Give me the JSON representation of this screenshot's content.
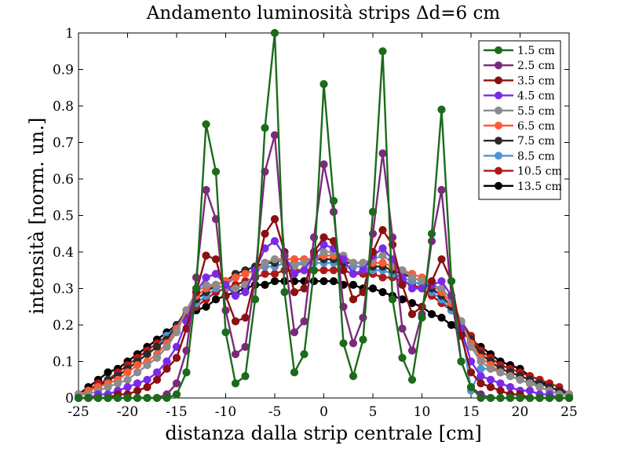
{
  "chart_data": {
    "type": "line",
    "title": "Andamento luminosità strips Δd=6 cm",
    "xlabel": "distanza dalla strip centrale [cm]",
    "ylabel": "intensità [norm. un.]",
    "xlim": [
      -25,
      25
    ],
    "ylim": [
      0,
      1
    ],
    "xticks": [
      -25,
      -20,
      -15,
      -10,
      -5,
      0,
      5,
      10,
      15,
      20,
      25
    ],
    "yticks": [
      0,
      0.1,
      0.2,
      0.3,
      0.4,
      0.5,
      0.6,
      0.7,
      0.8,
      0.9,
      1
    ],
    "xtick_labels": [
      "-25",
      "-20",
      "-15",
      "-10",
      "-5",
      "0",
      "5",
      "10",
      "15",
      "20",
      "25"
    ],
    "ytick_labels": [
      "0",
      "0.1",
      "0.2",
      "0.3",
      "0.4",
      "0.5",
      "0.6",
      "0.7",
      "0.8",
      "0.9",
      "1"
    ],
    "legend_position": "top-right",
    "grid": false,
    "series": [
      {
        "name": "1.5 cm",
        "color": "#1b6b1b",
        "x": [
          -25,
          -24,
          -23,
          -22,
          -21,
          -20,
          -19,
          -18,
          -17,
          -16,
          -15,
          -14,
          -13,
          -12,
          -11,
          -10,
          -9,
          -8,
          -7,
          -6,
          -5,
          -4,
          -3,
          -2,
          -1,
          0,
          1,
          2,
          3,
          4,
          5,
          6,
          7,
          8,
          9,
          10,
          11,
          12,
          13,
          14,
          15,
          16,
          17,
          18,
          19,
          20,
          21,
          22,
          23,
          24,
          25
        ],
        "y": [
          0,
          0,
          0,
          0,
          0,
          0,
          0,
          0,
          0,
          0,
          0.01,
          0.07,
          0.3,
          0.75,
          0.62,
          0.18,
          0.04,
          0.06,
          0.27,
          0.74,
          1.0,
          0.29,
          0.07,
          0.12,
          0.35,
          0.86,
          0.54,
          0.15,
          0.06,
          0.16,
          0.51,
          0.95,
          0.27,
          0.11,
          0.05,
          0.22,
          0.45,
          0.79,
          0.32,
          0.1,
          0.03,
          0,
          0,
          0,
          0,
          0,
          0,
          0,
          0,
          0,
          0
        ]
      },
      {
        "name": "2.5 cm",
        "color": "#7b2a7b",
        "x": [
          -25,
          -24,
          -23,
          -22,
          -21,
          -20,
          -19,
          -18,
          -17,
          -16,
          -15,
          -14,
          -13,
          -12,
          -11,
          -10,
          -9,
          -8,
          -7,
          -6,
          -5,
          -4,
          -3,
          -2,
          -1,
          0,
          1,
          2,
          3,
          4,
          5,
          6,
          7,
          8,
          9,
          10,
          11,
          12,
          13,
          14,
          15,
          16,
          17,
          18,
          19,
          20,
          21,
          22,
          23,
          24,
          25
        ],
        "y": [
          0,
          0,
          0,
          0,
          0,
          0,
          0,
          0,
          0,
          0.01,
          0.04,
          0.13,
          0.33,
          0.57,
          0.49,
          0.24,
          0.12,
          0.14,
          0.33,
          0.62,
          0.72,
          0.39,
          0.18,
          0.21,
          0.44,
          0.64,
          0.51,
          0.25,
          0.15,
          0.22,
          0.45,
          0.67,
          0.44,
          0.19,
          0.13,
          0.23,
          0.43,
          0.57,
          0.28,
          0.1,
          0.03,
          0.01,
          0,
          0,
          0,
          0,
          0,
          0,
          0,
          0,
          0
        ]
      },
      {
        "name": "3.5 cm",
        "color": "#8b1010",
        "x": [
          -25,
          -24,
          -23,
          -22,
          -21,
          -20,
          -19,
          -18,
          -17,
          -16,
          -15,
          -14,
          -13,
          -12,
          -11,
          -10,
          -9,
          -8,
          -7,
          -6,
          -5,
          -4,
          -3,
          -2,
          -1,
          0,
          1,
          2,
          3,
          4,
          5,
          6,
          7,
          8,
          9,
          10,
          11,
          12,
          13,
          14,
          15,
          16,
          17,
          18,
          19,
          20,
          21,
          22,
          23,
          24,
          25
        ],
        "y": [
          0,
          0,
          0,
          0,
          0.01,
          0.01,
          0.02,
          0.03,
          0.05,
          0.08,
          0.11,
          0.19,
          0.29,
          0.39,
          0.38,
          0.28,
          0.21,
          0.22,
          0.33,
          0.45,
          0.49,
          0.4,
          0.29,
          0.3,
          0.4,
          0.44,
          0.43,
          0.35,
          0.27,
          0.29,
          0.4,
          0.46,
          0.42,
          0.31,
          0.23,
          0.25,
          0.32,
          0.38,
          0.32,
          0.17,
          0.07,
          0.04,
          0.03,
          0.02,
          0.01,
          0.01,
          0,
          0,
          0,
          0,
          0
        ]
      },
      {
        "name": "4.5 cm",
        "color": "#7a2ae8",
        "x": [
          -25,
          -24,
          -23,
          -22,
          -21,
          -20,
          -19,
          -18,
          -17,
          -16,
          -15,
          -14,
          -13,
          -12,
          -11,
          -10,
          -9,
          -8,
          -7,
          -6,
          -5,
          -4,
          -3,
          -2,
          -1,
          0,
          1,
          2,
          3,
          4,
          5,
          6,
          7,
          8,
          9,
          10,
          11,
          12,
          13,
          14,
          15,
          16,
          17,
          18,
          19,
          20,
          21,
          22,
          23,
          24,
          25
        ],
        "y": [
          0,
          0,
          0.01,
          0.01,
          0.02,
          0.03,
          0.04,
          0.05,
          0.07,
          0.1,
          0.14,
          0.21,
          0.29,
          0.33,
          0.34,
          0.31,
          0.28,
          0.29,
          0.35,
          0.41,
          0.43,
          0.39,
          0.34,
          0.35,
          0.39,
          0.42,
          0.41,
          0.38,
          0.34,
          0.35,
          0.39,
          0.41,
          0.38,
          0.33,
          0.3,
          0.3,
          0.31,
          0.32,
          0.28,
          0.19,
          0.1,
          0.06,
          0.05,
          0.04,
          0.03,
          0.02,
          0.02,
          0.01,
          0.01,
          0,
          0
        ]
      },
      {
        "name": "5.5 cm",
        "color": "#8c8c8c",
        "x": [
          -25,
          -24,
          -23,
          -22,
          -21,
          -20,
          -19,
          -18,
          -17,
          -16,
          -15,
          -14,
          -13,
          -12,
          -11,
          -10,
          -9,
          -8,
          -7,
          -6,
          -5,
          -4,
          -3,
          -2,
          -1,
          0,
          1,
          2,
          3,
          4,
          5,
          6,
          7,
          8,
          9,
          10,
          11,
          12,
          13,
          14,
          15,
          16,
          17,
          18,
          19,
          20,
          21,
          22,
          23,
          24,
          25
        ],
        "y": [
          0.01,
          0.01,
          0.02,
          0.03,
          0.04,
          0.05,
          0.07,
          0.09,
          0.11,
          0.14,
          0.18,
          0.24,
          0.29,
          0.31,
          0.31,
          0.3,
          0.3,
          0.31,
          0.34,
          0.37,
          0.38,
          0.37,
          0.36,
          0.37,
          0.38,
          0.4,
          0.4,
          0.39,
          0.37,
          0.37,
          0.38,
          0.39,
          0.37,
          0.35,
          0.33,
          0.32,
          0.31,
          0.3,
          0.27,
          0.21,
          0.14,
          0.1,
          0.08,
          0.07,
          0.06,
          0.05,
          0.04,
          0.03,
          0.02,
          0.01,
          0.01
        ]
      },
      {
        "name": "6.5 cm",
        "color": "#ff5a36",
        "x": [
          -25,
          -24,
          -23,
          -22,
          -21,
          -20,
          -19,
          -18,
          -17,
          -16,
          -15,
          -14,
          -13,
          -12,
          -11,
          -10,
          -9,
          -8,
          -7,
          -6,
          -5,
          -4,
          -3,
          -2,
          -1,
          0,
          1,
          2,
          3,
          4,
          5,
          6,
          7,
          8,
          9,
          10,
          11,
          12,
          13,
          14,
          15,
          16,
          17,
          18,
          19,
          20,
          21,
          22,
          23,
          24,
          25
        ],
        "y": [
          0.01,
          0.02,
          0.03,
          0.04,
          0.05,
          0.07,
          0.09,
          0.1,
          0.12,
          0.15,
          0.19,
          0.24,
          0.28,
          0.3,
          0.31,
          0.32,
          0.33,
          0.34,
          0.35,
          0.37,
          0.38,
          0.38,
          0.38,
          0.38,
          0.38,
          0.39,
          0.39,
          0.38,
          0.37,
          0.37,
          0.37,
          0.37,
          0.36,
          0.35,
          0.34,
          0.33,
          0.31,
          0.29,
          0.26,
          0.21,
          0.15,
          0.11,
          0.09,
          0.07,
          0.06,
          0.05,
          0.04,
          0.03,
          0.02,
          0.01,
          0.01
        ]
      },
      {
        "name": "7.5 cm",
        "color": "#2a2a2a",
        "x": [
          -25,
          -24,
          -23,
          -22,
          -21,
          -20,
          -19,
          -18,
          -17,
          -16,
          -15,
          -14,
          -13,
          -12,
          -11,
          -10,
          -9,
          -8,
          -7,
          -6,
          -5,
          -4,
          -3,
          -2,
          -1,
          0,
          1,
          2,
          3,
          4,
          5,
          6,
          7,
          8,
          9,
          10,
          11,
          12,
          13,
          14,
          15,
          16,
          17,
          18,
          19,
          20,
          21,
          22,
          23,
          24,
          25
        ],
        "y": [
          0.01,
          0.02,
          0.03,
          0.05,
          0.06,
          0.08,
          0.1,
          0.12,
          0.14,
          0.16,
          0.2,
          0.24,
          0.27,
          0.29,
          0.31,
          0.32,
          0.34,
          0.35,
          0.36,
          0.37,
          0.37,
          0.38,
          0.38,
          0.38,
          0.38,
          0.38,
          0.38,
          0.37,
          0.37,
          0.37,
          0.36,
          0.36,
          0.35,
          0.34,
          0.33,
          0.32,
          0.3,
          0.28,
          0.25,
          0.21,
          0.16,
          0.12,
          0.1,
          0.08,
          0.07,
          0.06,
          0.05,
          0.04,
          0.03,
          0.02,
          0.01
        ]
      },
      {
        "name": "8.5 cm",
        "color": "#4f93d6",
        "x": [
          -25,
          -24,
          -23,
          -22,
          -21,
          -20,
          -19,
          -18,
          -17,
          -16,
          -15,
          -14,
          -13,
          -12,
          -11,
          -10,
          -9,
          -8,
          -7,
          -6,
          -5,
          -4,
          -3,
          -2,
          -1,
          0,
          1,
          2,
          3,
          4,
          5,
          6,
          7,
          8,
          9,
          10,
          11,
          12,
          13,
          14,
          15,
          16,
          17,
          18,
          19,
          20,
          21,
          22,
          23,
          24,
          25
        ],
        "y": [
          0.01,
          0.02,
          0.03,
          0.05,
          0.06,
          0.08,
          0.1,
          0.12,
          0.14,
          0.17,
          0.2,
          0.24,
          0.26,
          0.28,
          0.3,
          0.31,
          0.33,
          0.34,
          0.35,
          0.36,
          0.36,
          0.37,
          0.37,
          0.37,
          0.37,
          0.37,
          0.37,
          0.36,
          0.36,
          0.36,
          0.35,
          0.35,
          0.34,
          0.33,
          0.32,
          0.31,
          0.29,
          0.27,
          0.24,
          0.2,
          0.02,
          0.08,
          0.08,
          0.07,
          0.06,
          0.05,
          0.04,
          0.04,
          0.03,
          0.02,
          0.01
        ]
      },
      {
        "name": "10.5 cm",
        "color": "#b01818",
        "x": [
          -25,
          -24,
          -23,
          -22,
          -21,
          -20,
          -19,
          -18,
          -17,
          -16,
          -15,
          -14,
          -13,
          -12,
          -11,
          -10,
          -9,
          -8,
          -7,
          -6,
          -5,
          -4,
          -3,
          -2,
          -1,
          0,
          1,
          2,
          3,
          4,
          5,
          6,
          7,
          8,
          9,
          10,
          11,
          12,
          13,
          14,
          15,
          16,
          17,
          18,
          19,
          20,
          21,
          22,
          23,
          24,
          25
        ],
        "y": [
          0.01,
          0.02,
          0.04,
          0.05,
          0.07,
          0.09,
          0.11,
          0.13,
          0.15,
          0.17,
          0.2,
          0.23,
          0.25,
          0.27,
          0.29,
          0.3,
          0.31,
          0.32,
          0.33,
          0.34,
          0.34,
          0.35,
          0.35,
          0.35,
          0.35,
          0.35,
          0.35,
          0.35,
          0.34,
          0.34,
          0.34,
          0.33,
          0.33,
          0.32,
          0.31,
          0.3,
          0.28,
          0.26,
          0.24,
          0.21,
          0.17,
          0.13,
          0.11,
          0.09,
          0.08,
          0.07,
          0.06,
          0.05,
          0.04,
          0.03,
          0.01
        ]
      },
      {
        "name": "13.5 cm",
        "color": "#000000",
        "x": [
          -25,
          -24,
          -23,
          -22,
          -21,
          -20,
          -19,
          -18,
          -17,
          -16,
          -15,
          -14,
          -13,
          -12,
          -11,
          -10,
          -9,
          -8,
          -7,
          -6,
          -5,
          -4,
          -3,
          -2,
          -1,
          0,
          1,
          2,
          3,
          4,
          5,
          6,
          7,
          8,
          9,
          10,
          11,
          12,
          13,
          14,
          15,
          16,
          17,
          18,
          19,
          20,
          21,
          22,
          23,
          24,
          25
        ],
        "y": [
          0.01,
          0.03,
          0.05,
          0.07,
          0.08,
          0.1,
          0.12,
          0.14,
          0.16,
          0.18,
          0.2,
          0.22,
          0.24,
          0.25,
          0.27,
          0.28,
          0.29,
          0.3,
          0.31,
          0.31,
          0.32,
          0.32,
          0.32,
          0.32,
          0.32,
          0.32,
          0.32,
          0.31,
          0.31,
          0.3,
          0.3,
          0.29,
          0.28,
          0.27,
          0.26,
          0.25,
          0.23,
          0.22,
          0.2,
          0.18,
          0.16,
          0.14,
          0.12,
          0.1,
          0.09,
          0.08,
          0.06,
          0.05,
          0.03,
          0.02,
          0.01
        ]
      }
    ]
  }
}
